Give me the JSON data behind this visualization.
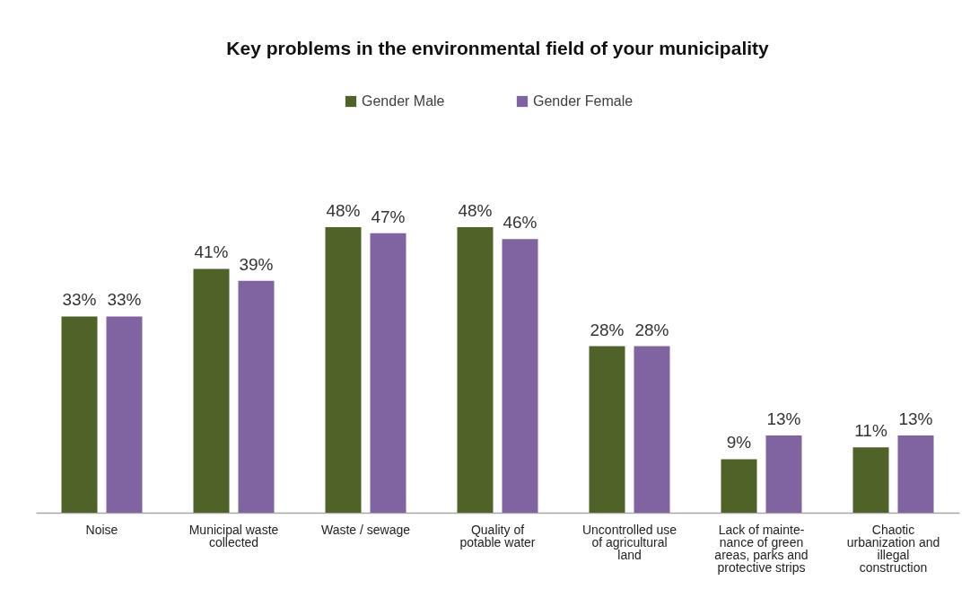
{
  "chart_data": {
    "type": "bar",
    "title": "Key problems in the environmental field of your municipality",
    "categories": [
      "Noise",
      "Municipal waste collected",
      "Waste / sewage",
      "Quality of potable water",
      "Uncontrolled use of agricultural land",
      "Lack of mainte-nance of green areas, parks and protective strips",
      "Chaotic urbanization and illegal construction"
    ],
    "series": [
      {
        "name": "Gender Male",
        "color": "#4f6228",
        "values": [
          33,
          41,
          48,
          48,
          28,
          9,
          11
        ],
        "value_labels": [
          "33%",
          "41%",
          "48%",
          "48%",
          "28%",
          "9%",
          "11%"
        ]
      },
      {
        "name": "Gender Female",
        "color": "#8064a2",
        "values": [
          33,
          39,
          47,
          46,
          28,
          13,
          13
        ],
        "value_labels": [
          "33%",
          "39%",
          "47%",
          "46%",
          "28%",
          "13%",
          "13%"
        ]
      }
    ],
    "legend": "top"
  }
}
